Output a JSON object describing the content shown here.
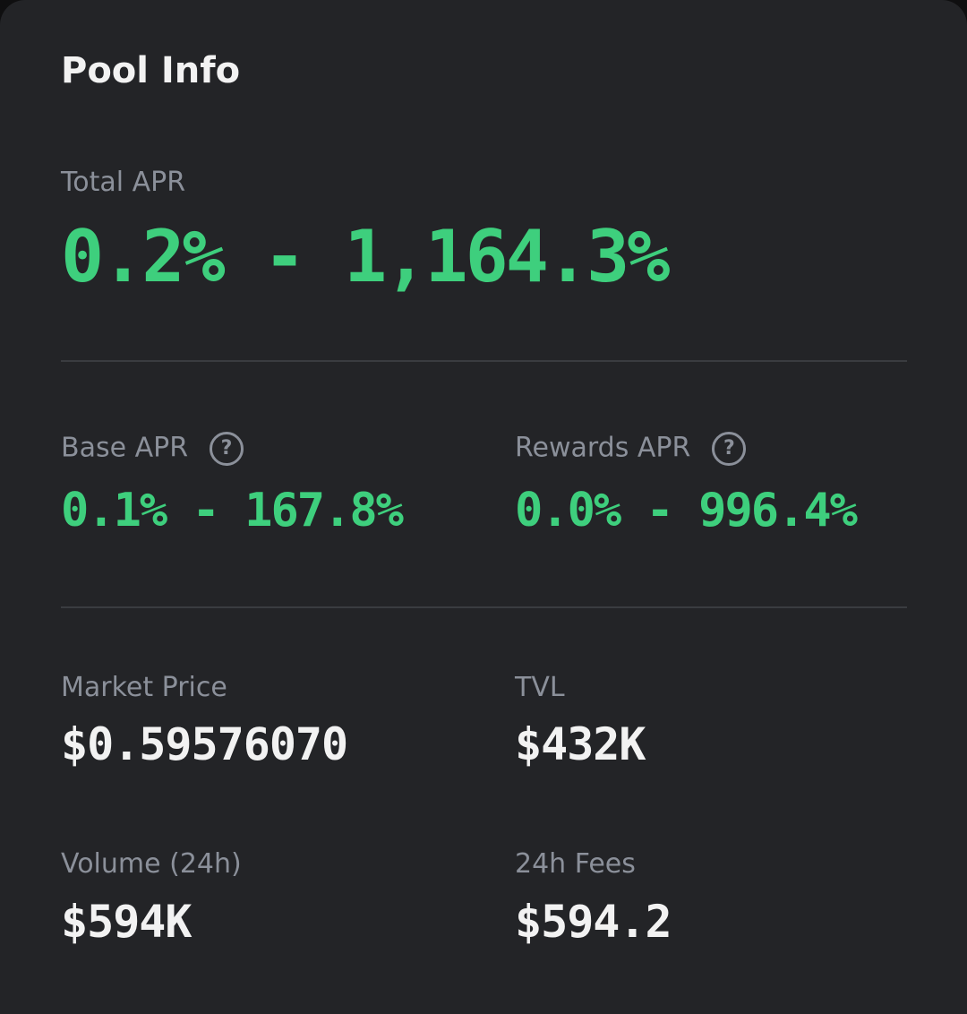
{
  "title": "Pool Info",
  "total_apr": {
    "label": "Total APR",
    "value": "0.2% - 1,164.3%"
  },
  "apr_breakdown": [
    {
      "label": "Base APR",
      "value": "0.1% - 167.8%"
    },
    {
      "label": "Rewards APR",
      "value": "0.0% - 996.4%"
    }
  ],
  "stats": [
    {
      "label": "Market Price",
      "value": "$0.59576070"
    },
    {
      "label": "TVL",
      "value": "$432K"
    },
    {
      "label": "Volume (24h)",
      "value": "$594K"
    },
    {
      "label": "24h Fees",
      "value": "$594.2"
    }
  ]
}
